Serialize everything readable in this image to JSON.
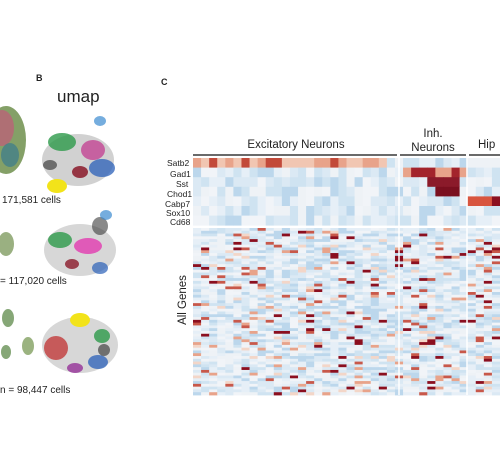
{
  "panels": {
    "b": {
      "letter": "B",
      "title": "umap"
    },
    "c": {
      "letter": "C"
    }
  },
  "cell_counts": {
    "row1": "171,581 cells",
    "row2": "= 117,020 cells",
    "row3": "n = 98,447 cells"
  },
  "heatmap": {
    "groups": [
      {
        "label": "Excitatory Neurons"
      },
      {
        "label_line1": "Inh.",
        "label_line2": "Neurons"
      },
      {
        "label": "Hip"
      }
    ],
    "marker_genes": [
      "Satb2",
      "Gad1",
      "Sst",
      "Chod1",
      "Cabp7",
      "Sox10",
      "Cd68"
    ],
    "all_genes_label": "All Genes",
    "colors": {
      "high": "#8b0f1f",
      "mid": "#e8a38a",
      "low": "#cfe3f1",
      "neutral": "#f4f1ee"
    }
  }
}
